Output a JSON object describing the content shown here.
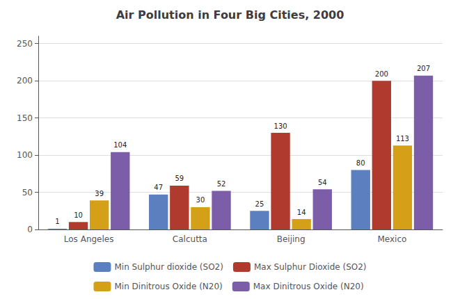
{
  "chart_data": {
    "type": "bar",
    "title": "Air Pollution in Four Big Cities, 2000",
    "categories": [
      "Los Angeles",
      "Calcutta",
      "Beijing",
      "Mexico"
    ],
    "series": [
      {
        "name": "Min Sulphur dioxide (SO2)",
        "color": "#5B7FBF",
        "values": [
          1,
          47,
          25,
          80
        ]
      },
      {
        "name": "Max Sulphur Dioxide (SO2)",
        "color": "#B03A2E",
        "values": [
          10,
          59,
          130,
          200
        ]
      },
      {
        "name": "Min Dinitrous Oxide (N20)",
        "color": "#D4A017",
        "values": [
          39,
          30,
          14,
          113
        ]
      },
      {
        "name": "Max Dinitrous Oxide (N20)",
        "color": "#7B5EA7",
        "values": [
          104,
          52,
          54,
          207
        ]
      }
    ],
    "ylim": [
      0,
      260
    ],
    "yticks": [
      0,
      50,
      100,
      150,
      200,
      250
    ],
    "grid": true,
    "legend": "bottom",
    "data_labels": true
  }
}
